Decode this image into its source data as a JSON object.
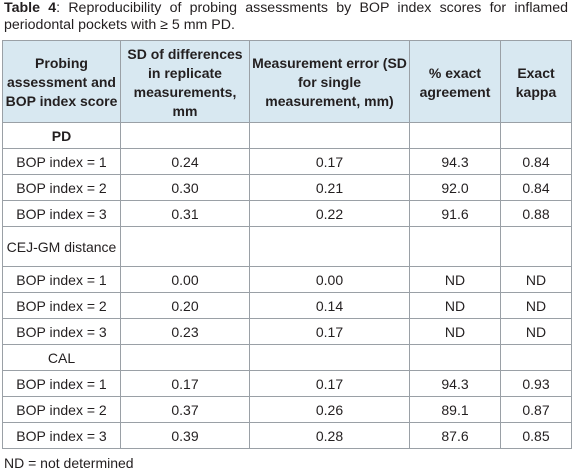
{
  "caption": {
    "label": "Table 4",
    "text": ": Reproducibility of probing assessments by BOP index scores for inflamed periodontal pockets with ≥ 5 mm PD."
  },
  "table": {
    "headers": [
      "Probing assessment and BOP index score",
      "SD of differences in replicate measurements, mm",
      "Measurement error (SD for single measurement, mm)",
      "% exact agreement",
      "Exact kappa"
    ],
    "sections": [
      {
        "title": "PD",
        "rows": [
          [
            "BOP index = 1",
            "0.24",
            "0.17",
            "94.3",
            "0.84"
          ],
          [
            "BOP index = 2",
            "0.30",
            "0.21",
            "92.0",
            "0.84"
          ],
          [
            "BOP index = 3",
            "0.31",
            "0.22",
            "91.6",
            "0.88"
          ]
        ]
      },
      {
        "title": "CEJ-GM distance",
        "rows": [
          [
            "BOP index = 1",
            "0.00",
            "0.00",
            "ND",
            "ND"
          ],
          [
            "BOP index = 2",
            "0.20",
            "0.14",
            "ND",
            "ND"
          ],
          [
            "BOP index = 3",
            "0.23",
            "0.17",
            "ND",
            "ND"
          ]
        ]
      },
      {
        "title": "CAL",
        "rows": [
          [
            "BOP index = 1",
            "0.17",
            "0.17",
            "94.3",
            "0.93"
          ],
          [
            "BOP index = 2",
            "0.37",
            "0.26",
            "89.1",
            "0.87"
          ],
          [
            "BOP index = 3",
            "0.39",
            "0.28",
            "87.6",
            "0.85"
          ]
        ]
      }
    ]
  },
  "footnote": "ND = not determined",
  "colors": {
    "header_background": "#d8e8f1",
    "border": "#9aa0a6",
    "text": "#231f20"
  }
}
